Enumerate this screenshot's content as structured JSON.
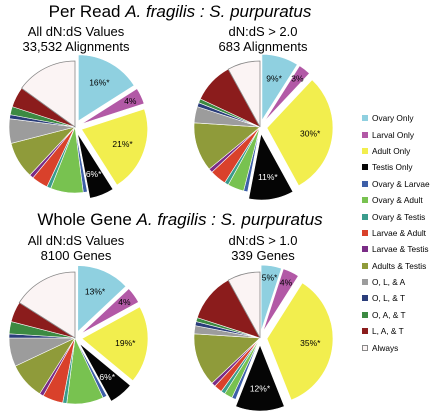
{
  "titles": {
    "top": {
      "prefix": "Per Read ",
      "italic": "A. fragilis : S. purpuratus"
    },
    "bottom": {
      "prefix": "Whole Gene ",
      "italic": "A. fragilis : S. purpuratus"
    }
  },
  "legend": [
    {
      "label": "Ovary Only",
      "color": "#8fd0e0"
    },
    {
      "label": "Larval Only",
      "color": "#b259a6"
    },
    {
      "label": "Adult Only",
      "color": "#f2ee4e"
    },
    {
      "label": "Testis Only",
      "color": "#050505"
    },
    {
      "label": "Ovary & Larvae",
      "color": "#3d5fa8"
    },
    {
      "label": "Ovary & Adult",
      "color": "#78c250"
    },
    {
      "label": "Ovary & Testis",
      "color": "#3a9c8c"
    },
    {
      "label": "Larvae & Adult",
      "color": "#d9412b"
    },
    {
      "label": "Larvae & Testis",
      "color": "#7a2c86"
    },
    {
      "label": "Adults & Testis",
      "color": "#8f9b3a"
    },
    {
      "label": "O, L, & A",
      "color": "#9c9c9c"
    },
    {
      "label": "O, L, & T",
      "color": "#2a3d7a"
    },
    {
      "label": "O, A, & T",
      "color": "#3c8a42"
    },
    {
      "label": "L, A, & T",
      "color": "#8b1c1c"
    },
    {
      "label": "Always",
      "color": "#fbf4f4",
      "stroke": "#888888"
    }
  ],
  "chart_data": [
    {
      "type": "pie",
      "title": "All dN:dS Values\n33,532 Alignments",
      "title_lines": [
        "All dN:dS Values",
        "33,532 Alignments"
      ],
      "values": [
        16,
        4,
        21,
        6,
        1,
        8,
        1,
        4,
        1,
        9,
        6,
        1,
        2,
        5,
        15
      ],
      "labels": [
        "16%*",
        "4%",
        "21%*",
        "6%*",
        "",
        "",
        "",
        "",
        "",
        "",
        "",
        "",
        "",
        "",
        ""
      ],
      "exploded": [
        true,
        true,
        true,
        true,
        false,
        false,
        false,
        false,
        false,
        false,
        false,
        false,
        false,
        false,
        false
      ]
    },
    {
      "type": "pie",
      "title": "dN:dS > 2.0\n683 Alignments",
      "title_lines": [
        "dN:dS > 2.0",
        "683 Alignments"
      ],
      "values": [
        9,
        3,
        30,
        11,
        1,
        4,
        1,
        4,
        1,
        12,
        4,
        1,
        1,
        10,
        8
      ],
      "labels": [
        "9%*",
        "3%",
        "30%*",
        "11%*",
        "",
        "",
        "",
        "",
        "",
        "",
        "",
        "",
        "",
        "",
        ""
      ],
      "exploded": [
        true,
        true,
        true,
        true,
        false,
        false,
        false,
        false,
        false,
        false,
        false,
        false,
        false,
        false,
        false
      ]
    },
    {
      "type": "pie",
      "title": "All dN:dS Values\n8100 Genes",
      "title_lines": [
        "All dN:dS Values",
        "8100 Genes"
      ],
      "values": [
        13,
        4,
        19,
        6,
        1,
        9,
        1,
        5,
        1,
        9,
        7,
        1,
        3,
        5,
        16
      ],
      "labels": [
        "13%*",
        "4%",
        "19%*",
        "6%*",
        "",
        "",
        "",
        "",
        "",
        "",
        "",
        "",
        "",
        "",
        ""
      ],
      "exploded": [
        true,
        true,
        true,
        true,
        false,
        false,
        false,
        false,
        false,
        false,
        false,
        false,
        false,
        false,
        false
      ]
    },
    {
      "type": "pie",
      "title": "dN:dS > 1.0\n339 Genes",
      "title_lines": [
        "dN:dS > 1.0",
        "339 Genes"
      ],
      "values": [
        5,
        4,
        35,
        12,
        1,
        2,
        1,
        2,
        1,
        13,
        2,
        1,
        1,
        12,
        8
      ],
      "labels": [
        "5%*",
        "4%",
        "35%*",
        "12%*",
        "",
        "",
        "",
        "",
        "",
        "",
        "",
        "",
        "",
        "",
        ""
      ],
      "exploded": [
        true,
        true,
        true,
        true,
        false,
        false,
        false,
        false,
        false,
        false,
        false,
        false,
        false,
        false,
        false
      ]
    }
  ]
}
